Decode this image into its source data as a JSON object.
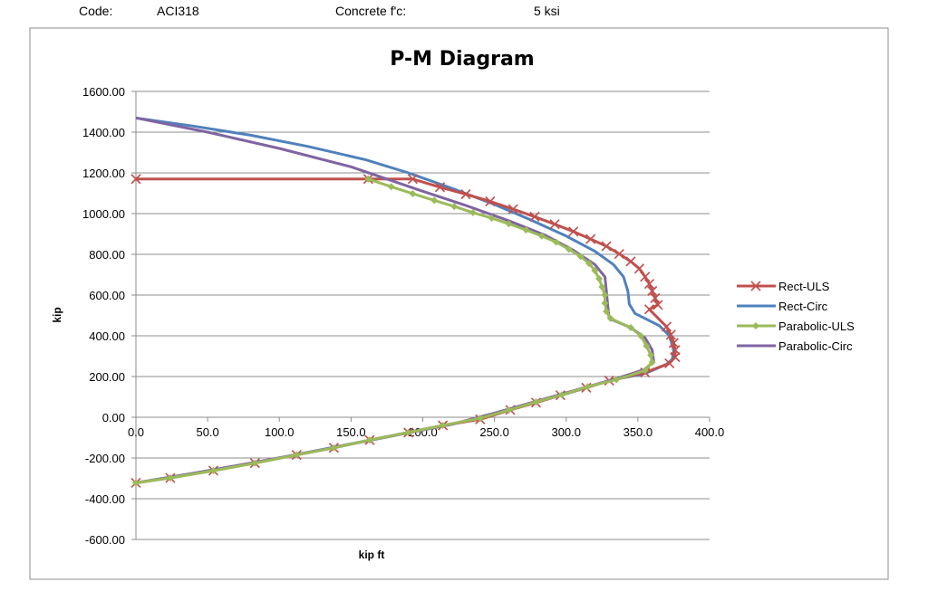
{
  "header": {
    "code_label": "Code:",
    "code_value": "ACI318",
    "concrete_label": "Concrete f'c:",
    "concrete_value": "5 ksi"
  },
  "chart_data": {
    "type": "line",
    "title": "P-M Diagram",
    "xlabel": "kip ft",
    "ylabel": "kip",
    "xlim": [
      0,
      400
    ],
    "ylim": [
      -600,
      1600
    ],
    "x_ticks": [
      "0.0",
      "50.0",
      "100.0",
      "150.0",
      "200.0",
      "250.0",
      "300.0",
      "350.0",
      "400.0"
    ],
    "y_ticks": [
      "1600.00",
      "1400.00",
      "1200.00",
      "1000.00",
      "800.00",
      "600.00",
      "400.00",
      "200.00",
      "0.00",
      "-200.00",
      "-400.00",
      "-600.00"
    ],
    "grid": "horizontal",
    "legend": "right",
    "series": [
      {
        "name": "Rect-ULS",
        "color": "#c0504d",
        "marker": "x",
        "points": [
          [
            0,
            1170
          ],
          [
            162,
            1170
          ],
          [
            193,
            1170
          ],
          [
            212,
            1130
          ],
          [
            230,
            1095
          ],
          [
            247,
            1060
          ],
          [
            263,
            1022
          ],
          [
            278,
            985
          ],
          [
            292,
            948
          ],
          [
            305,
            912
          ],
          [
            317,
            875
          ],
          [
            328,
            840
          ],
          [
            337,
            802
          ],
          [
            345,
            765
          ],
          [
            351,
            730
          ],
          [
            355,
            690
          ],
          [
            358,
            655
          ],
          [
            360,
            620
          ],
          [
            362,
            585
          ],
          [
            364,
            552
          ],
          [
            358,
            530
          ],
          [
            370,
            445
          ],
          [
            373,
            405
          ],
          [
            375,
            365
          ],
          [
            376,
            330
          ],
          [
            376,
            295
          ],
          [
            372,
            265
          ],
          [
            355,
            220
          ],
          [
            330,
            180
          ],
          [
            314,
            145
          ],
          [
            296,
            108
          ],
          [
            279,
            72
          ],
          [
            261,
            36
          ],
          [
            240,
            -10
          ],
          [
            214,
            -40
          ],
          [
            190,
            -75
          ],
          [
            163,
            -112
          ],
          [
            138,
            -150
          ],
          [
            112,
            -185
          ],
          [
            83,
            -225
          ],
          [
            54,
            -262
          ],
          [
            24,
            -298
          ],
          [
            0,
            -322
          ]
        ]
      },
      {
        "name": "Rect-Circ",
        "color": "#4f81bd",
        "marker": "",
        "points": [
          [
            0,
            1470
          ],
          [
            40,
            1430
          ],
          [
            80,
            1385
          ],
          [
            120,
            1330
          ],
          [
            160,
            1265
          ],
          [
            190,
            1200
          ],
          [
            220,
            1125
          ],
          [
            250,
            1045
          ],
          [
            275,
            970
          ],
          [
            300,
            890
          ],
          [
            320,
            815
          ],
          [
            333,
            750
          ],
          [
            340,
            690
          ],
          [
            343,
            620
          ],
          [
            344,
            555
          ],
          [
            348,
            510
          ],
          [
            365,
            450
          ],
          [
            372,
            400
          ],
          [
            375,
            330
          ],
          [
            374,
            285
          ],
          [
            370,
            260
          ],
          [
            355,
            215
          ],
          [
            330,
            180
          ],
          [
            300,
            115
          ],
          [
            270,
            55
          ],
          [
            240,
            -5
          ],
          [
            200,
            -60
          ],
          [
            150,
            -130
          ],
          [
            100,
            -200
          ],
          [
            50,
            -265
          ],
          [
            0,
            -322
          ]
        ]
      },
      {
        "name": "Parabolic-ULS",
        "color": "#9bbb59",
        "marker": "diamond",
        "points": [
          [
            162,
            1170
          ],
          [
            178,
            1132
          ],
          [
            193,
            1098
          ],
          [
            208,
            1065
          ],
          [
            222,
            1035
          ],
          [
            235,
            1005
          ],
          [
            248,
            978
          ],
          [
            260,
            950
          ],
          [
            272,
            920
          ],
          [
            283,
            890
          ],
          [
            293,
            860
          ],
          [
            302,
            825
          ],
          [
            310,
            790
          ],
          [
            316,
            755
          ],
          [
            320,
            720
          ],
          [
            323,
            680
          ],
          [
            325,
            640
          ],
          [
            327,
            600
          ],
          [
            327,
            560
          ],
          [
            328,
            520
          ],
          [
            331,
            485
          ],
          [
            345,
            440
          ],
          [
            352,
            400
          ],
          [
            356,
            350
          ],
          [
            359,
            305
          ],
          [
            360,
            270
          ],
          [
            355,
            230
          ],
          [
            335,
            185
          ],
          [
            315,
            150
          ],
          [
            297,
            110
          ],
          [
            279,
            75
          ],
          [
            260,
            35
          ],
          [
            240,
            -5
          ],
          [
            214,
            -40
          ],
          [
            190,
            -75
          ],
          [
            163,
            -112
          ],
          [
            138,
            -150
          ],
          [
            112,
            -185
          ],
          [
            83,
            -225
          ],
          [
            54,
            -262
          ],
          [
            24,
            -298
          ],
          [
            0,
            -322
          ]
        ]
      },
      {
        "name": "Parabolic-Circ",
        "color": "#8064a2",
        "marker": "",
        "points": [
          [
            0,
            1470
          ],
          [
            50,
            1400
          ],
          [
            100,
            1320
          ],
          [
            150,
            1230
          ],
          [
            175,
            1170
          ],
          [
            200,
            1110
          ],
          [
            230,
            1040
          ],
          [
            260,
            965
          ],
          [
            285,
            895
          ],
          [
            305,
            820
          ],
          [
            320,
            750
          ],
          [
            327,
            690
          ],
          [
            328,
            620
          ],
          [
            329,
            550
          ],
          [
            330,
            485
          ],
          [
            345,
            440
          ],
          [
            355,
            390
          ],
          [
            360,
            330
          ],
          [
            361,
            275
          ],
          [
            355,
            235
          ],
          [
            335,
            190
          ],
          [
            310,
            140
          ],
          [
            280,
            80
          ],
          [
            250,
            20
          ],
          [
            220,
            -35
          ],
          [
            180,
            -90
          ],
          [
            130,
            -160
          ],
          [
            80,
            -225
          ],
          [
            40,
            -275
          ],
          [
            0,
            -322
          ]
        ]
      }
    ]
  }
}
